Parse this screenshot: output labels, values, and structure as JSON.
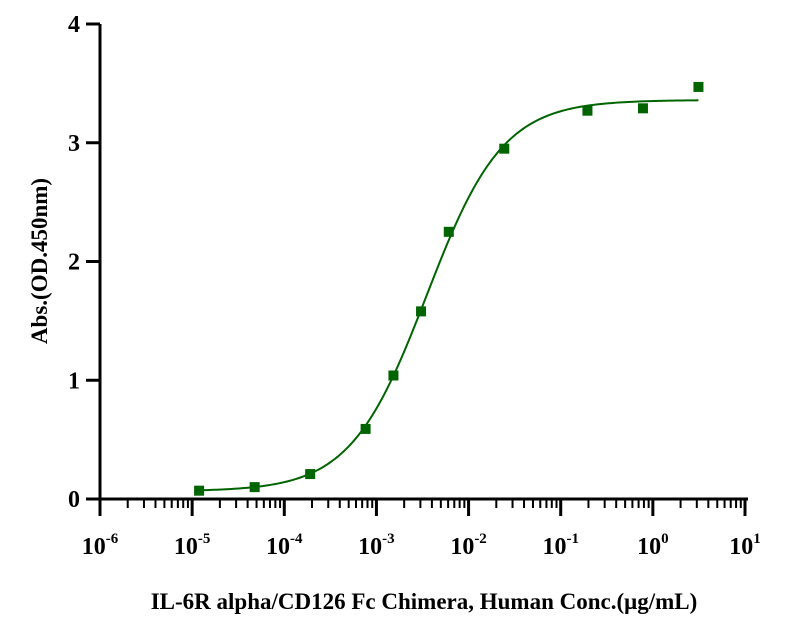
{
  "chart_data": {
    "type": "scatter",
    "title": "",
    "xlabel": "IL-6R alpha/CD126 Fc Chimera, Human Conc.(μg/mL)",
    "ylabel": "Abs.(OD.450nm)",
    "x_scale": "log",
    "xlim": [
      1e-06,
      10
    ],
    "ylim": [
      0,
      4
    ],
    "x_ticks": [
      {
        "base": "10",
        "exp": "-6"
      },
      {
        "base": "10",
        "exp": "-5"
      },
      {
        "base": "10",
        "exp": "-4"
      },
      {
        "base": "10",
        "exp": "-3"
      },
      {
        "base": "10",
        "exp": "-2"
      },
      {
        "base": "10",
        "exp": "-1"
      },
      {
        "base": "10",
        "exp": "0"
      },
      {
        "base": "10",
        "exp": "1"
      }
    ],
    "y_ticks": [
      "0",
      "1",
      "2",
      "3",
      "4"
    ],
    "grid": false,
    "legend": "none",
    "color": "#006400",
    "series": [
      {
        "x": [
          1.19e-05,
          4.77e-05,
          0.000191,
          0.000763,
          0.00153,
          0.00305,
          0.0061,
          0.0244,
          0.195,
          0.781,
          3.125
        ],
        "y": [
          0.07,
          0.1,
          0.21,
          0.59,
          1.04,
          1.58,
          2.25,
          2.95,
          3.27,
          3.29,
          3.47
        ]
      }
    ],
    "fit_curve": {
      "type": "4PL sigmoid",
      "bottom": 0.065,
      "top": 3.36,
      "ec50": 0.0035,
      "hill": 1.05
    }
  }
}
